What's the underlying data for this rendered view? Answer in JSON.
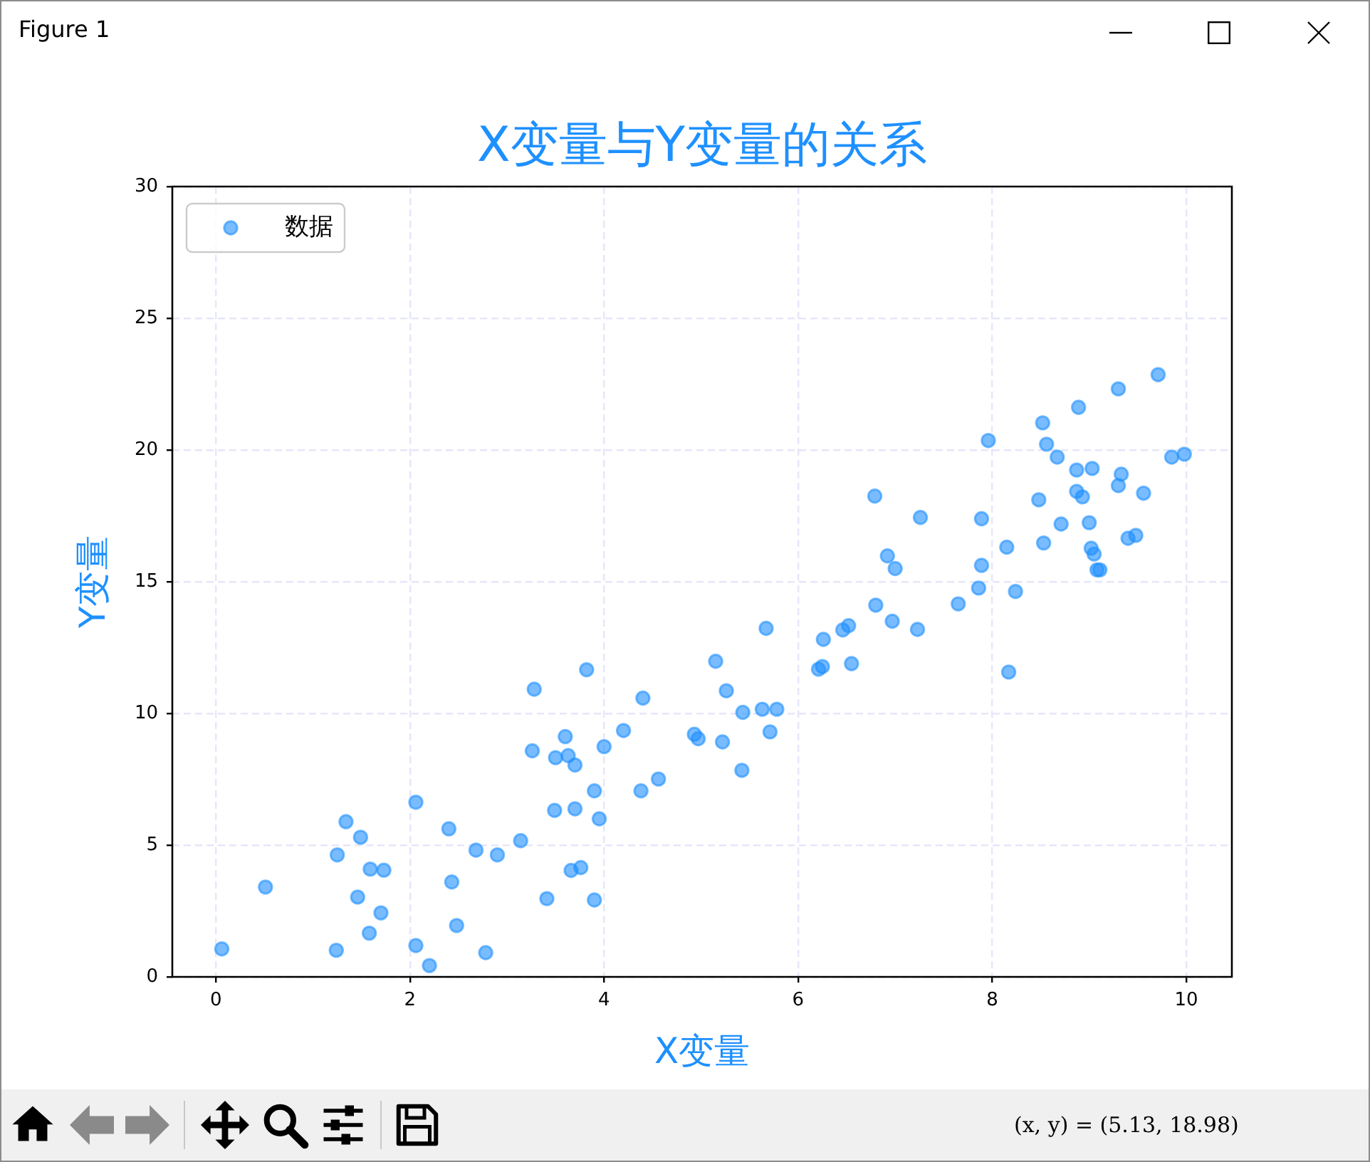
{
  "chart_data": {
    "type": "scatter",
    "title": "X变量与Y变量的关系",
    "xlabel": "X变量",
    "ylabel": "Y变量",
    "x": [
      0.06,
      0.51,
      1.24,
      1.34,
      1.49,
      1.25,
      1.59,
      1.73,
      1.46,
      1.7,
      1.58,
      2.06,
      2.06,
      2.2,
      2.4,
      2.43,
      2.48,
      2.68,
      2.9,
      2.78,
      3.14,
      3.28,
      3.26,
      3.82,
      3.6,
      3.5,
      3.63,
      3.7,
      4.0,
      4.2,
      3.9,
      3.49,
      3.7,
      3.95,
      3.66,
      3.76,
      3.41,
      3.9,
      4.38,
      4.56,
      4.4,
      4.93,
      4.97,
      5.15,
      5.26,
      5.22,
      5.42,
      5.43,
      5.63,
      5.78,
      5.71,
      5.67,
      6.21,
      6.25,
      6.26,
      6.46,
      6.52,
      6.55,
      6.79,
      6.92,
      7.0,
      6.8,
      6.97,
      7.23,
      7.26,
      7.65,
      7.86,
      7.89,
      7.89,
      7.96,
      8.15,
      8.17,
      8.24,
      8.48,
      8.52,
      8.53,
      8.56,
      8.67,
      8.71,
      8.87,
      8.87,
      8.89,
      8.93,
      9.0,
      9.02,
      9.03,
      9.05,
      9.08,
      9.11,
      9.3,
      9.3,
      9.33,
      9.4,
      9.48,
      9.56,
      9.71,
      9.85,
      9.98
    ],
    "series": [
      {
        "name": "数据",
        "color": "#1e90ff",
        "values": [
          1.06,
          3.41,
          1.01,
          5.89,
          5.3,
          4.63,
          4.09,
          4.05,
          3.03,
          2.43,
          1.66,
          6.63,
          1.19,
          0.43,
          5.62,
          3.6,
          1.95,
          4.81,
          4.63,
          0.92,
          5.17,
          10.92,
          8.58,
          11.66,
          9.12,
          8.32,
          8.4,
          8.04,
          8.74,
          9.35,
          7.06,
          6.32,
          6.38,
          6.0,
          4.04,
          4.15,
          2.97,
          2.92,
          7.06,
          7.51,
          10.58,
          9.21,
          9.04,
          11.98,
          10.86,
          8.92,
          7.84,
          10.04,
          10.16,
          10.16,
          9.3,
          13.23,
          11.68,
          11.78,
          12.81,
          13.17,
          13.33,
          11.89,
          18.25,
          15.98,
          15.5,
          14.11,
          13.5,
          13.19,
          17.44,
          14.16,
          14.76,
          15.62,
          17.39,
          20.36,
          16.31,
          11.57,
          14.63,
          18.11,
          21.03,
          16.47,
          20.22,
          19.73,
          17.19,
          19.24,
          18.43,
          21.62,
          18.22,
          17.24,
          16.27,
          19.3,
          16.05,
          15.45,
          15.45,
          22.32,
          18.65,
          19.08,
          16.65,
          16.76,
          18.36,
          22.86,
          19.73,
          19.84
        ]
      }
    ],
    "xlim": [
      -0.45,
      10.47
    ],
    "xticks": [
      0,
      2,
      4,
      6,
      8,
      10
    ],
    "ylim": [
      0,
      30
    ],
    "yticks": [
      0,
      5,
      10,
      15,
      20,
      25,
      30
    ],
    "grid": true,
    "legend": "top left",
    "marker": "circle",
    "annotations": [
      "Figure 1",
      "(x, y) = (5.13, 18.98)"
    ]
  }
}
